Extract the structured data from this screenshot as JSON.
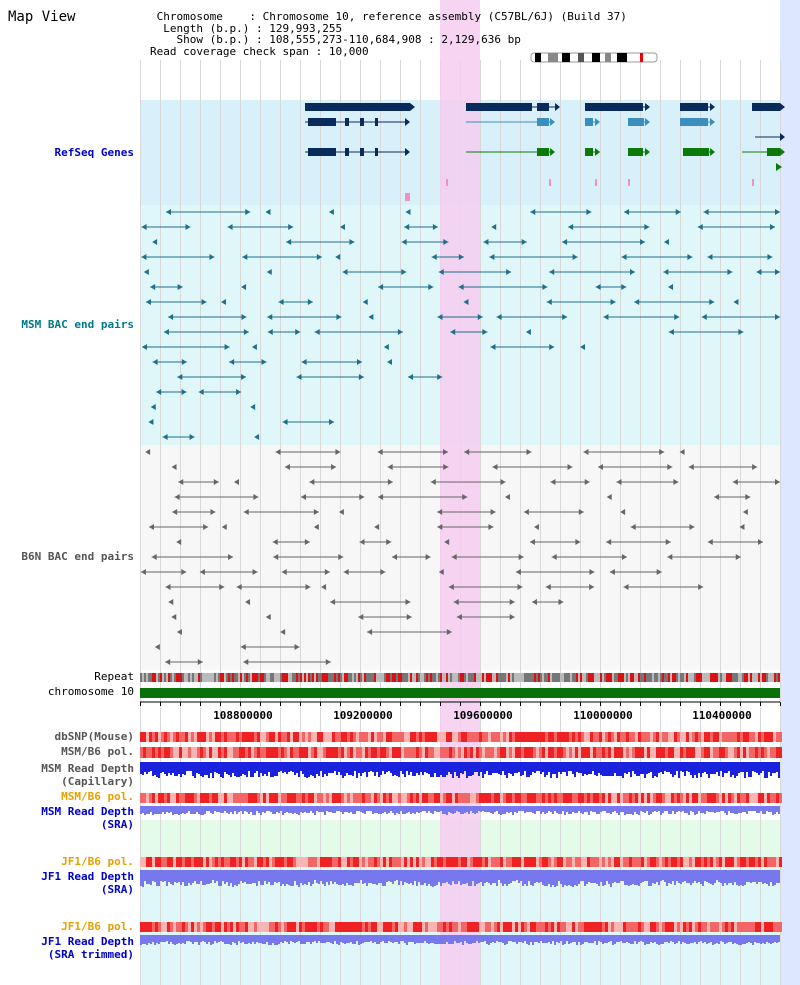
{
  "title": "Map View",
  "info": {
    "chromosome_label": "Chromosome",
    "chromosome_value": "Chromosome 10, reference assembly (C57BL/6J) (Build 37)",
    "length_label": "Length (b.p.)",
    "length_value": "129,993,255",
    "show_label": "Show (b.p.)",
    "show_value": "108,555,273-110,684,908 : 2,129,636 bp",
    "coverage_label": "Read coverage check span",
    "coverage_value": "10,000"
  },
  "tracks": {
    "refseq": "RefSeq Genes",
    "msm_bac": "MSM BAC end pairs",
    "b6n_bac": "B6N BAC end pairs",
    "repeat": "Repeat",
    "chromosome": "chromosome 10",
    "dbsnp": "dbSNP(Mouse)",
    "msm_b6_pol_1": "MSM/B6 pol.",
    "msm_depth_cap_1": "MSM Read Depth",
    "msm_depth_cap_2": "(Capillary)",
    "msm_b6_pol_2": "MSM/B6 pol.",
    "msm_depth_sra_1": "MSM Read Depth",
    "msm_depth_sra_2": "(SRA)",
    "jf1_b6_pol_1": "JF1/B6 pol.",
    "jf1_depth_sra_1": "JF1 Read Depth",
    "jf1_depth_sra_2": "(SRA)",
    "jf1_b6_pol_2": "JF1/B6 pol.",
    "jf1_depth_trim_1": "JF1 Read Depth",
    "jf1_depth_trim_2": "(SRA trimmed)"
  },
  "axis": {
    "ticks": [
      "108800000",
      "109200000",
      "109600000",
      "110000000",
      "110400000"
    ]
  },
  "colors": {
    "refseq_bg": "#d8f0fa",
    "msm_bg": "#e0f7f9",
    "highlight": "#f4cdf0",
    "gene_dark": "#0b2a5c",
    "gene_mid": "#3c8fbd",
    "gene_green": "#0b7a0b",
    "msm_line": "#1e6e8c",
    "b6n_line": "#666666",
    "chromosome_bar": "#0a700a",
    "pol_red": "#ee3333",
    "depth_blue": "#1a22dd",
    "depth_light": "#7777ee"
  }
}
